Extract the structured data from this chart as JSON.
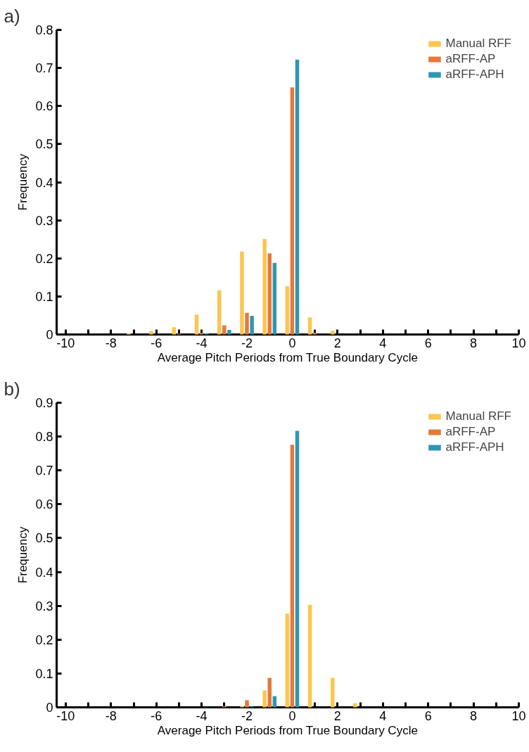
{
  "chart_data": [
    {
      "type": "bar",
      "title": "a)",
      "xlabel": "Average Pitch Periods from True Boundary Cycle",
      "ylabel": "Frequency",
      "x": [
        -10,
        -9,
        -8,
        -7,
        -6,
        -5,
        -4,
        -3,
        -2,
        -1,
        0,
        1,
        2,
        3,
        4,
        5,
        6,
        7,
        8,
        9,
        10
      ],
      "series": [
        {
          "name": "Manual RFF",
          "color": "#fbc54f",
          "values": [
            0,
            0,
            0,
            0.003,
            0.009,
            0.019,
            0.052,
            0.116,
            0.218,
            0.251,
            0.127,
            0.045,
            0.01,
            0,
            0,
            0,
            0,
            0,
            0,
            0,
            0
          ]
        },
        {
          "name": "aRFF-AP",
          "color": "#e5793a",
          "values": [
            0,
            0,
            0,
            0,
            0,
            0.002,
            0.004,
            0.024,
            0.057,
            0.213,
            0.649,
            0.005,
            0,
            0,
            0,
            0,
            0,
            0,
            0,
            0,
            0
          ]
        },
        {
          "name": "aRFF-APH",
          "color": "#2e96b3",
          "values": [
            0,
            0,
            0,
            0,
            0,
            0,
            0.003,
            0.012,
            0.049,
            0.188,
            0.722,
            0,
            0,
            0,
            0,
            0,
            0,
            0,
            0,
            0,
            0
          ]
        }
      ],
      "xlim": [
        -10.4,
        10
      ],
      "xticks": [
        -10,
        {
          "value": -9,
          "label": null
        },
        -8,
        {
          "value": -7,
          "label": null
        },
        -6,
        {
          "value": -5,
          "label": null
        },
        -4,
        {
          "value": -3,
          "label": null
        },
        -2,
        {
          "value": -1,
          "label": null
        },
        0,
        {
          "value": 1,
          "label": null
        },
        2,
        {
          "value": 3,
          "label": null
        },
        4,
        {
          "value": 5,
          "label": null
        },
        6,
        {
          "value": 7,
          "label": null
        },
        8,
        {
          "value": 9,
          "label": null
        },
        10
      ],
      "ylim": [
        0,
        0.8
      ],
      "yticks": [
        0,
        0.1,
        0.2,
        0.3,
        0.4,
        0.5,
        0.6,
        0.7,
        0.8
      ],
      "grid": false,
      "legend": "top right"
    },
    {
      "type": "bar",
      "title": "b)",
      "xlabel": "Average Pitch Periods from True Boundary Cycle",
      "ylabel": "Frequency",
      "x": [
        -10,
        -9,
        -8,
        -7,
        -6,
        -5,
        -4,
        -3,
        -2,
        -1,
        0,
        1,
        2,
        3,
        4,
        5,
        6,
        7,
        8,
        9,
        10
      ],
      "series": [
        {
          "name": "Manual RFF",
          "color": "#fbc54f",
          "values": [
            0,
            0,
            0,
            0,
            0,
            0,
            0,
            0,
            0.003,
            0.05,
            0.277,
            0.303,
            0.087,
            0.012,
            0,
            0,
            0,
            0,
            0,
            0,
            0
          ]
        },
        {
          "name": "aRFF-AP",
          "color": "#e5793a",
          "values": [
            0,
            0,
            0,
            0,
            0,
            0,
            0,
            0.003,
            0.021,
            0.087,
            0.776,
            0,
            0,
            0,
            0,
            0,
            0,
            0,
            0,
            0,
            0
          ]
        },
        {
          "name": "aRFF-APH",
          "color": "#2e96b3",
          "values": [
            0,
            0,
            0,
            0,
            0,
            0,
            0,
            0,
            0.002,
            0.033,
            0.817,
            0,
            0,
            0,
            0,
            0,
            0,
            0,
            0,
            0,
            0
          ]
        }
      ],
      "xlim": [
        -10.4,
        10
      ],
      "xticks": [
        -10,
        {
          "value": -9,
          "label": null
        },
        -8,
        {
          "value": -7,
          "label": null
        },
        -6,
        {
          "value": -5,
          "label": null
        },
        -4,
        {
          "value": -3,
          "label": null
        },
        -2,
        {
          "value": -1,
          "label": null
        },
        0,
        {
          "value": 1,
          "label": null
        },
        2,
        {
          "value": 3,
          "label": null
        },
        4,
        {
          "value": 5,
          "label": null
        },
        6,
        {
          "value": 7,
          "label": null
        },
        8,
        {
          "value": 9,
          "label": null
        },
        10
      ],
      "ylim": [
        0,
        0.9
      ],
      "yticks": [
        0,
        0.1,
        0.2,
        0.3,
        0.4,
        0.5,
        0.6,
        0.7,
        0.8,
        0.9
      ],
      "grid": false,
      "legend": "top right"
    }
  ]
}
